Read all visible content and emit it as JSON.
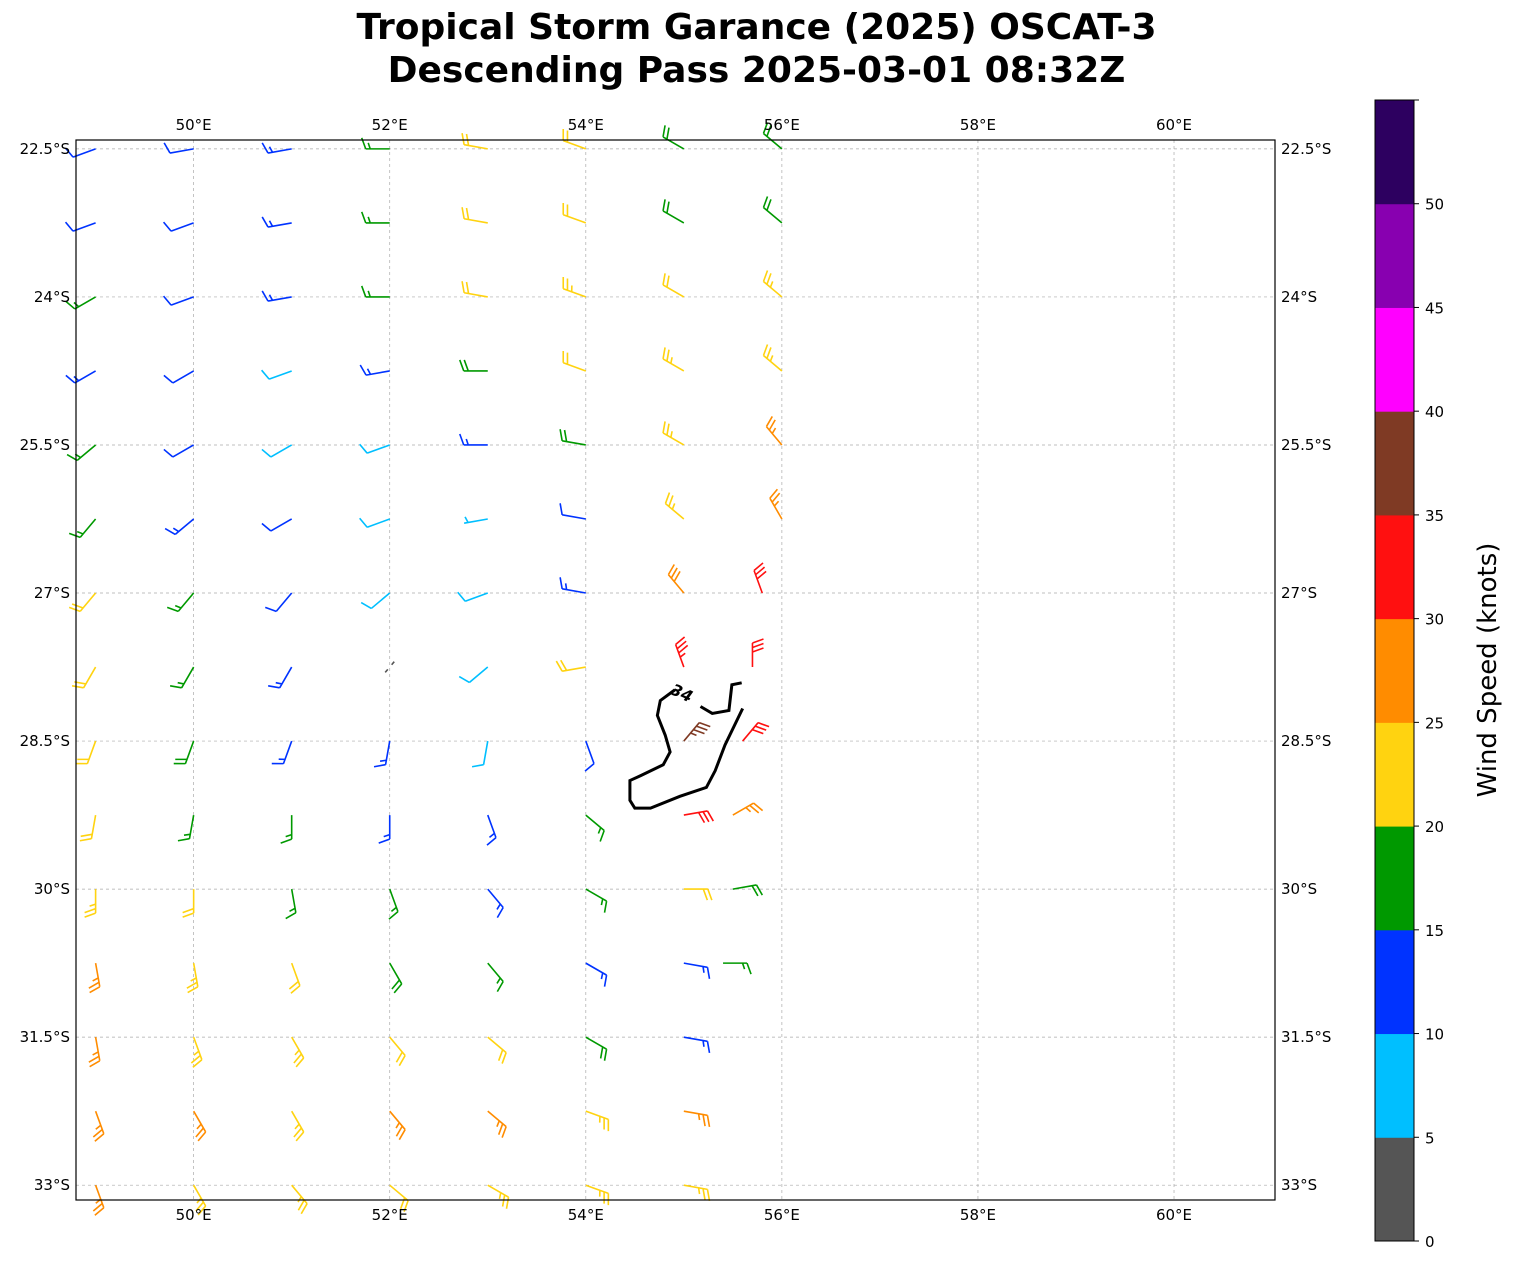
{
  "title_line1": "Tropical Storm Garance (2025) OSCAT-3",
  "title_line2": "Descending Pass 2025-03-01 08:32Z",
  "chart_data": {
    "type": "wind-barb-map",
    "lon_range": [
      48.8,
      61.03
    ],
    "lat_range": [
      -33.15,
      -22.41
    ],
    "grid": true,
    "lon_ticks": [
      {
        "v": 50,
        "label": "50°E"
      },
      {
        "v": 52,
        "label": "52°E"
      },
      {
        "v": 54,
        "label": "54°E"
      },
      {
        "v": 56,
        "label": "56°E"
      },
      {
        "v": 58,
        "label": "58°E"
      },
      {
        "v": 60,
        "label": "60°E"
      }
    ],
    "lat_ticks": [
      {
        "v": -22.5,
        "label": "22.5°S"
      },
      {
        "v": -24,
        "label": "24°S"
      },
      {
        "v": -25.5,
        "label": "25.5°S"
      },
      {
        "v": -27,
        "label": "27°S"
      },
      {
        "v": -28.5,
        "label": "28.5°S"
      },
      {
        "v": -30,
        "label": "30°S"
      },
      {
        "v": -31.5,
        "label": "31.5°S"
      },
      {
        "v": -33,
        "label": "33°S"
      }
    ],
    "barb_fields": "lon, lat, speed_kt, direction_from_deg",
    "barbs": [
      [
        49,
        -22.5,
        12,
        250
      ],
      [
        50,
        -22.5,
        12,
        260
      ],
      [
        51,
        -22.5,
        14,
        260
      ],
      [
        52,
        -22.5,
        17,
        270
      ],
      [
        53,
        -22.5,
        22,
        280
      ],
      [
        54,
        -22.5,
        22,
        290
      ],
      [
        55,
        -22.5,
        18,
        300
      ],
      [
        56,
        -22.5,
        18,
        310
      ],
      [
        49,
        -23.25,
        12,
        250
      ],
      [
        50,
        -23.25,
        12,
        250
      ],
      [
        51,
        -23.25,
        13,
        260
      ],
      [
        52,
        -23.25,
        16,
        270
      ],
      [
        53,
        -23.25,
        21,
        280
      ],
      [
        54,
        -23.25,
        22,
        290
      ],
      [
        55,
        -23.25,
        19,
        300
      ],
      [
        56,
        -23.25,
        18,
        310
      ],
      [
        49,
        -24,
        16,
        240
      ],
      [
        50,
        -24,
        12,
        250
      ],
      [
        51,
        -24,
        13,
        260
      ],
      [
        52,
        -24,
        16,
        270
      ],
      [
        53,
        -24,
        21,
        280
      ],
      [
        54,
        -24,
        23,
        290
      ],
      [
        55,
        -24,
        22,
        300
      ],
      [
        56,
        -24,
        23,
        310
      ],
      [
        49,
        -24.75,
        13,
        240
      ],
      [
        50,
        -24.75,
        12,
        240
      ],
      [
        51,
        -24.75,
        9,
        250
      ],
      [
        52,
        -24.75,
        13,
        260
      ],
      [
        53,
        -24.75,
        18,
        270
      ],
      [
        54,
        -24.75,
        22,
        290
      ],
      [
        55,
        -24.75,
        23,
        300
      ],
      [
        56,
        -24.75,
        23,
        310
      ],
      [
        49,
        -25.5,
        17,
        230
      ],
      [
        50,
        -25.5,
        12,
        240
      ],
      [
        51,
        -25.5,
        9,
        240
      ],
      [
        52,
        -25.5,
        9,
        250
      ],
      [
        53,
        -25.5,
        13,
        270
      ],
      [
        54,
        -25.5,
        18,
        280
      ],
      [
        55,
        -25.5,
        23,
        300
      ],
      [
        56,
        -25.5,
        26,
        320
      ],
      [
        49,
        -26.25,
        17,
        220
      ],
      [
        50,
        -26.25,
        13,
        230
      ],
      [
        51,
        -26.25,
        12,
        240
      ],
      [
        52,
        -26.25,
        8,
        250
      ],
      [
        53,
        -26.25,
        7,
        260
      ],
      [
        54,
        -26.25,
        12,
        280
      ],
      [
        55,
        -26.25,
        24,
        310
      ],
      [
        56,
        -26.25,
        27,
        330
      ],
      [
        49,
        -27,
        21,
        220
      ],
      [
        50,
        -27,
        16,
        220
      ],
      [
        51,
        -27,
        12,
        220
      ],
      [
        52,
        -27,
        8,
        230
      ],
      [
        53,
        -27,
        9,
        250
      ],
      [
        54,
        -27,
        13,
        280
      ],
      [
        55,
        -27,
        28,
        320
      ],
      [
        55.8,
        -27,
        32,
        340
      ],
      [
        49,
        -27.75,
        22,
        210
      ],
      [
        50,
        -27.75,
        17,
        210
      ],
      [
        51,
        -27.75,
        13,
        210
      ],
      [
        52,
        -27.75,
        4,
        220
      ],
      [
        53,
        -27.75,
        8,
        230
      ],
      [
        54,
        -27.75,
        21,
        260
      ],
      [
        55,
        -27.75,
        33,
        340
      ],
      [
        55.7,
        -27.75,
        32,
        0
      ],
      [
        49,
        -28.5,
        22,
        200
      ],
      [
        50,
        -28.5,
        18,
        200
      ],
      [
        51,
        -28.5,
        14,
        200
      ],
      [
        52,
        -28.5,
        13,
        190
      ],
      [
        53,
        -28.5,
        9,
        190
      ],
      [
        54,
        -28.5,
        12,
        160
      ],
      [
        55,
        -28.5,
        37,
        40
      ],
      [
        55.6,
        -28.5,
        31,
        40
      ],
      [
        49,
        -29.25,
        22,
        190
      ],
      [
        50,
        -29.25,
        17,
        190
      ],
      [
        51,
        -29.25,
        16,
        180
      ],
      [
        52,
        -29.25,
        14,
        180
      ],
      [
        53,
        -29.25,
        13,
        160
      ],
      [
        54,
        -29.25,
        17,
        130
      ],
      [
        55,
        -29.25,
        32,
        80
      ],
      [
        55.5,
        -29.25,
        27,
        60
      ],
      [
        49,
        -30,
        23,
        180
      ],
      [
        50,
        -30,
        21,
        180
      ],
      [
        51,
        -30,
        17,
        170
      ],
      [
        52,
        -30,
        16,
        160
      ],
      [
        53,
        -30,
        14,
        140
      ],
      [
        54,
        -30,
        17,
        120
      ],
      [
        55,
        -30,
        22,
        90
      ],
      [
        55.5,
        -30,
        18,
        80
      ],
      [
        49,
        -30.75,
        26,
        170
      ],
      [
        50,
        -30.75,
        23,
        170
      ],
      [
        51,
        -30.75,
        21,
        160
      ],
      [
        52,
        -30.75,
        18,
        150
      ],
      [
        53,
        -30.75,
        17,
        140
      ],
      [
        54,
        -30.75,
        14,
        120
      ],
      [
        55,
        -30.75,
        13,
        100
      ],
      [
        55.4,
        -30.75,
        16,
        90
      ],
      [
        49,
        -31.5,
        26,
        170
      ],
      [
        50,
        -31.5,
        24,
        160
      ],
      [
        51,
        -31.5,
        23,
        150
      ],
      [
        52,
        -31.5,
        22,
        140
      ],
      [
        53,
        -31.5,
        22,
        130
      ],
      [
        54,
        -31.5,
        18,
        120
      ],
      [
        55,
        -31.5,
        14,
        100
      ],
      [
        49,
        -32.25,
        27,
        160
      ],
      [
        50,
        -32.25,
        26,
        150
      ],
      [
        51,
        -32.25,
        24,
        150
      ],
      [
        52,
        -32.25,
        26,
        140
      ],
      [
        53,
        -32.25,
        27,
        130
      ],
      [
        54,
        -32.25,
        24,
        110
      ],
      [
        55,
        -32.25,
        26,
        100
      ],
      [
        49,
        -33,
        26,
        160
      ],
      [
        50,
        -33,
        24,
        150
      ],
      [
        51,
        -33,
        23,
        140
      ],
      [
        52,
        -33,
        22,
        130
      ],
      [
        53,
        -33,
        23,
        120
      ],
      [
        54,
        -33,
        24,
        110
      ],
      [
        55,
        -33,
        23,
        100
      ]
    ],
    "contour": {
      "label": "34",
      "points": [
        [
          55.59,
          -27.91
        ],
        [
          55.49,
          -27.93
        ],
        [
          55.46,
          -28.19
        ],
        [
          55.29,
          -28.22
        ],
        [
          55.17,
          -28.15
        ],
        [
          54.91,
          -27.98
        ],
        [
          54.76,
          -28.09
        ],
        [
          54.73,
          -28.24
        ],
        [
          54.81,
          -28.44
        ],
        [
          54.86,
          -28.61
        ],
        [
          54.79,
          -28.74
        ],
        [
          54.56,
          -28.85
        ],
        [
          54.45,
          -28.9
        ],
        [
          54.45,
          -29.1
        ],
        [
          54.5,
          -29.18
        ],
        [
          54.66,
          -29.18
        ],
        [
          54.96,
          -29.06
        ],
        [
          55.23,
          -28.97
        ],
        [
          55.32,
          -28.8
        ],
        [
          55.42,
          -28.54
        ],
        [
          55.6,
          -28.17
        ]
      ]
    },
    "colorbar": {
      "label": "Wind Speed (knots)",
      "bounds": [
        0,
        5,
        10,
        15,
        20,
        25,
        30,
        35,
        40,
        45,
        50,
        55
      ],
      "tick_labels": [
        "0",
        "5",
        "10",
        "15",
        "20",
        "25",
        "30",
        "35",
        "40",
        "45",
        "50"
      ],
      "colors": [
        "#555555",
        "#00bfff",
        "#0033ff",
        "#009900",
        "#ffd310",
        "#ff8c00",
        "#ff1010",
        "#7f3a24",
        "#ff00ff",
        "#8800b0",
        "#2d0060"
      ]
    }
  }
}
